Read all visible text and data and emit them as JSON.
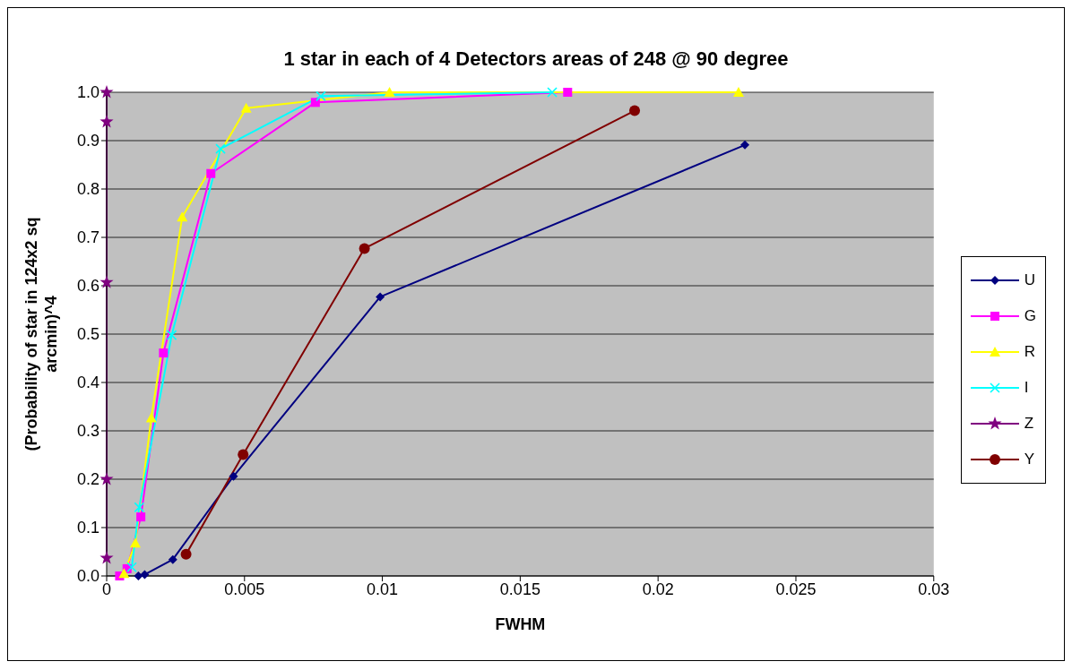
{
  "chart_data": {
    "type": "line",
    "title": "1 star in each of 4 Detectors areas of 248 @ 90 degree",
    "xlabel": "FWHM",
    "ylabel": "(Probability of star in 124x2 sq arcmin)^4",
    "xlim": [
      0,
      0.03
    ],
    "xticks": [
      0,
      0.005,
      0.01,
      0.015,
      0.02,
      0.025,
      0.03
    ],
    "ylim": [
      0,
      1
    ],
    "yticks": [
      {
        "value": 0,
        "label": "0.0"
      },
      {
        "value": 0.1,
        "label": "0.1"
      },
      {
        "value": 0.2,
        "label": "0.2"
      },
      {
        "value": 0.3,
        "label": "0.3"
      },
      {
        "value": 0.4,
        "label": "0.4"
      },
      {
        "value": 0.5,
        "label": "0.5"
      },
      {
        "value": 0.6,
        "label": "0.6"
      },
      {
        "value": 0.7,
        "label": "0.7"
      },
      {
        "value": 0.8,
        "label": "0.8"
      },
      {
        "value": 0.9,
        "label": "0.9"
      },
      {
        "value": 1,
        "label": "1.0"
      }
    ],
    "grid": "y",
    "legend": "right",
    "line_style": "solid",
    "series": [
      {
        "name": "U",
        "color": "#000080",
        "marker": "diamond",
        "x": [
          0.00115,
          0.00138,
          0.0024,
          0.0046,
          0.00992,
          0.02315
        ],
        "values": [
          0,
          0.003,
          0.034,
          0.206,
          0.577,
          0.891
        ]
      },
      {
        "name": "G",
        "color": "#ff00ff",
        "marker": "square",
        "x": [
          0.00047,
          0.00074,
          0.00124,
          0.00206,
          0.00378,
          0.00757,
          0.01672
        ],
        "values": [
          0,
          0.015,
          0.122,
          0.461,
          0.832,
          0.979,
          1.0
        ]
      },
      {
        "name": "R",
        "color": "#ffff00",
        "marker": "triangle",
        "x": [
          0.00063,
          0.00104,
          0.00162,
          0.00274,
          0.00506,
          0.01026,
          0.02292
        ],
        "values": [
          0.005,
          0.068,
          0.327,
          0.742,
          0.967,
          1.0,
          1.0
        ]
      },
      {
        "name": "I",
        "color": "#00ffff",
        "marker": "cross",
        "x": [
          0.00091,
          0.00118,
          0.00236,
          0.00413,
          0.00777,
          0.01616
        ],
        "values": [
          0.018,
          0.142,
          0.498,
          0.883,
          0.992,
          1.0
        ]
      },
      {
        "name": "Z",
        "color": "#800080",
        "marker": "star",
        "x": [
          0,
          0,
          0,
          0,
          0
        ],
        "values": [
          0.037,
          0.2,
          0.607,
          0.939,
          1.0
        ]
      },
      {
        "name": "Y",
        "color": "#800000",
        "marker": "circle",
        "x": [
          0.00288,
          0.00495,
          0.00935,
          0.01915
        ],
        "values": [
          0.045,
          0.251,
          0.677,
          0.962
        ]
      }
    ]
  }
}
